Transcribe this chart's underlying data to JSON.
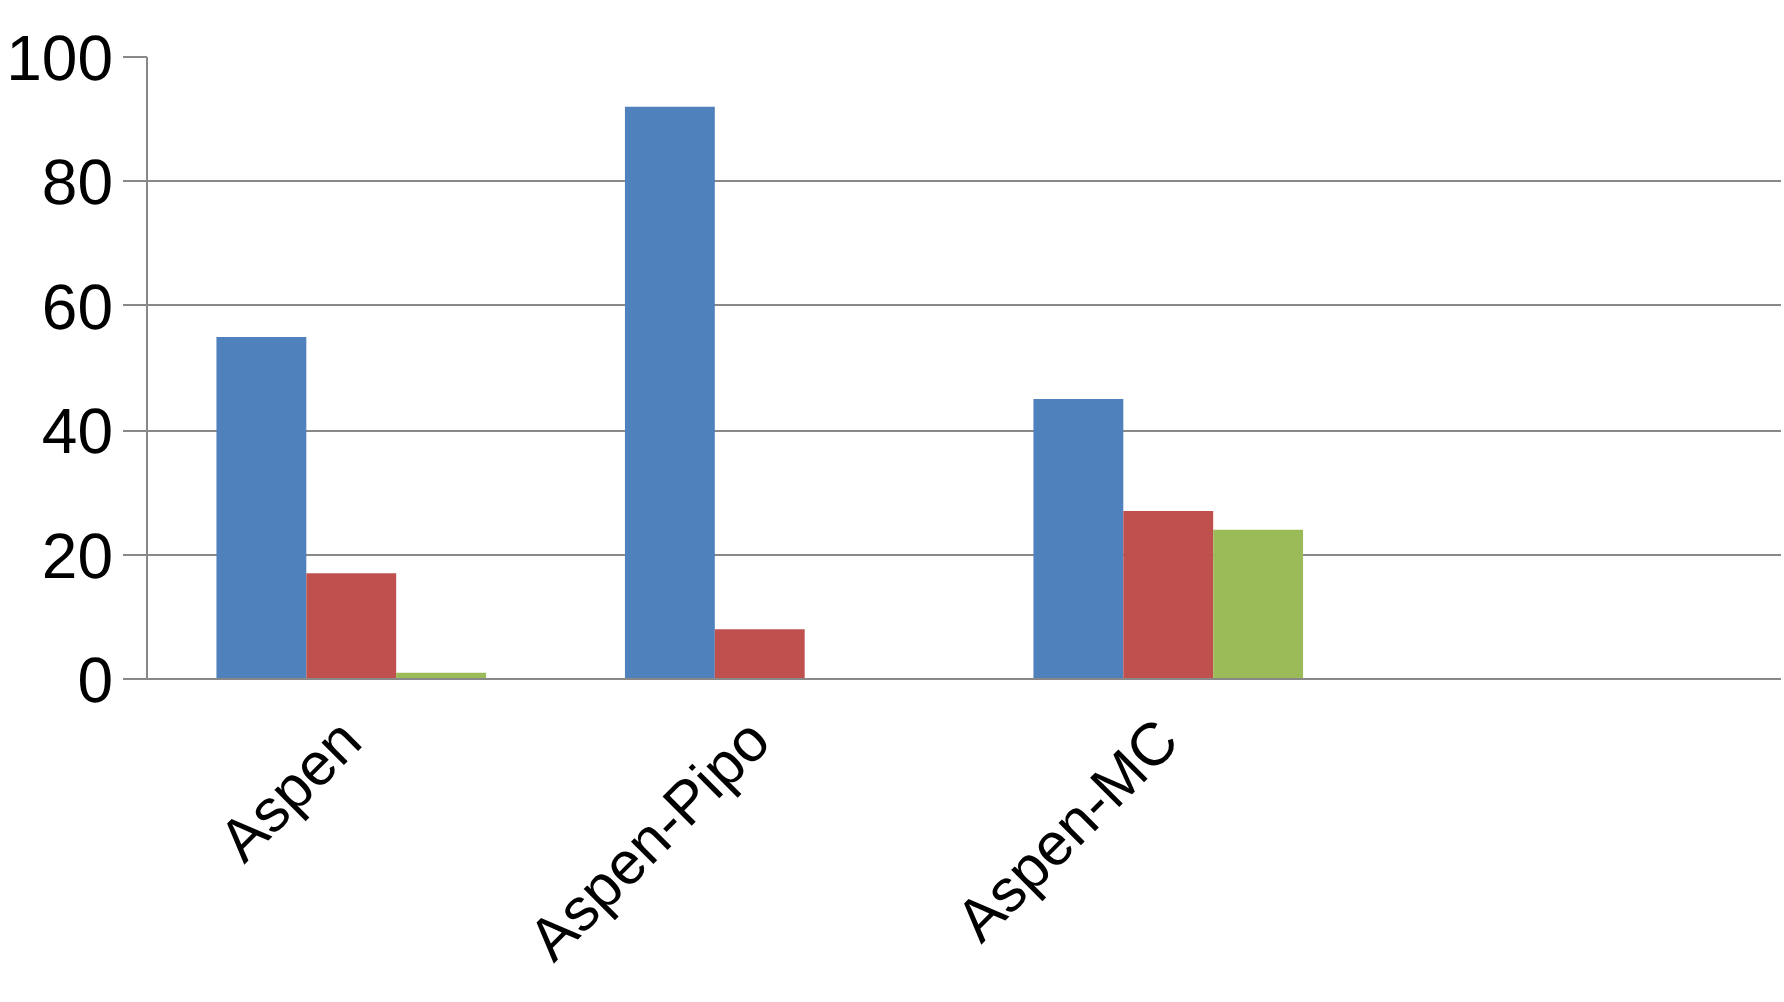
{
  "chart_data": {
    "type": "bar",
    "categories": [
      "Aspen",
      "Aspen-Pipo",
      "Aspen-MC",
      null
    ],
    "series": [
      {
        "color": "#4f81bd",
        "values": [
          55,
          92,
          45,
          null
        ]
      },
      {
        "color": "#c0504d",
        "values": [
          17,
          8,
          27,
          null
        ]
      },
      {
        "color": "#9bbb59",
        "values": [
          1,
          null,
          24,
          null
        ]
      }
    ],
    "ylim": [
      0,
      100
    ],
    "yticks": [
      0,
      20,
      40,
      60,
      80,
      100
    ],
    "grid": "y"
  }
}
